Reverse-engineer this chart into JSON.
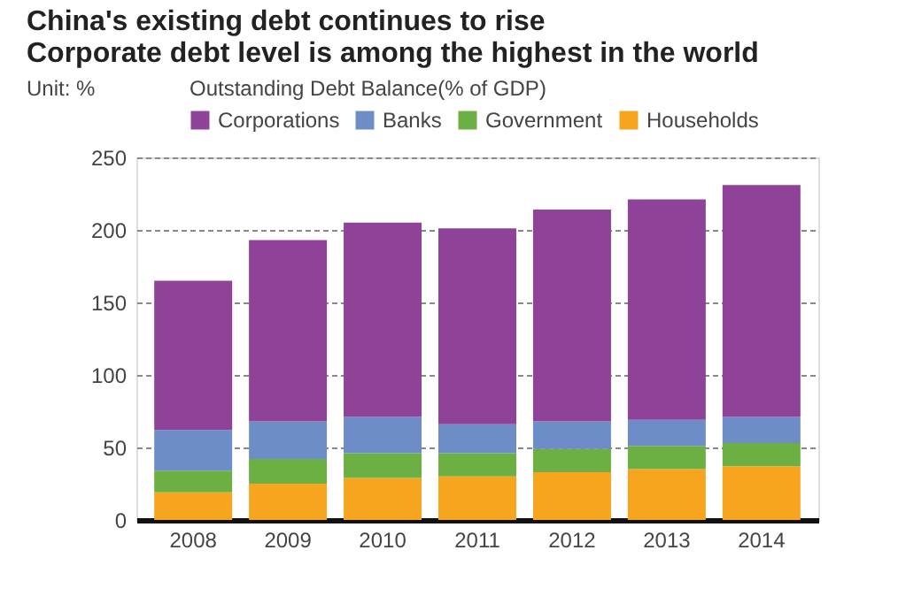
{
  "chart_data": {
    "type": "bar",
    "title": [
      "China's existing debt continues to rise",
      "Corporate debt level is among the highest in the world"
    ],
    "legend_title": "Outstanding Debt Balance(% of GDP)",
    "annotations": [
      "Unit: %"
    ],
    "categories": [
      "2008",
      "2009",
      "2010",
      "2011",
      "2012",
      "2013",
      "2014"
    ],
    "stacked": true,
    "series": [
      {
        "name": "Households",
        "color": "#f7a51e",
        "values": [
          19,
          25,
          29,
          30,
          33,
          35,
          37
        ]
      },
      {
        "name": "Government",
        "color": "#6cb043",
        "values": [
          15,
          17,
          17,
          16,
          16,
          16,
          16
        ]
      },
      {
        "name": "Banks",
        "color": "#6e8dc8",
        "values": [
          28,
          26,
          25,
          20,
          19,
          18,
          18
        ]
      },
      {
        "name": "Corporations",
        "color": "#8e4398",
        "values": [
          103,
          125,
          134,
          135,
          146,
          152,
          160
        ]
      }
    ],
    "ylim": [
      0,
      250
    ],
    "yticks": [
      0,
      50,
      100,
      150,
      200,
      250
    ],
    "grid": "y",
    "legend": "top"
  }
}
